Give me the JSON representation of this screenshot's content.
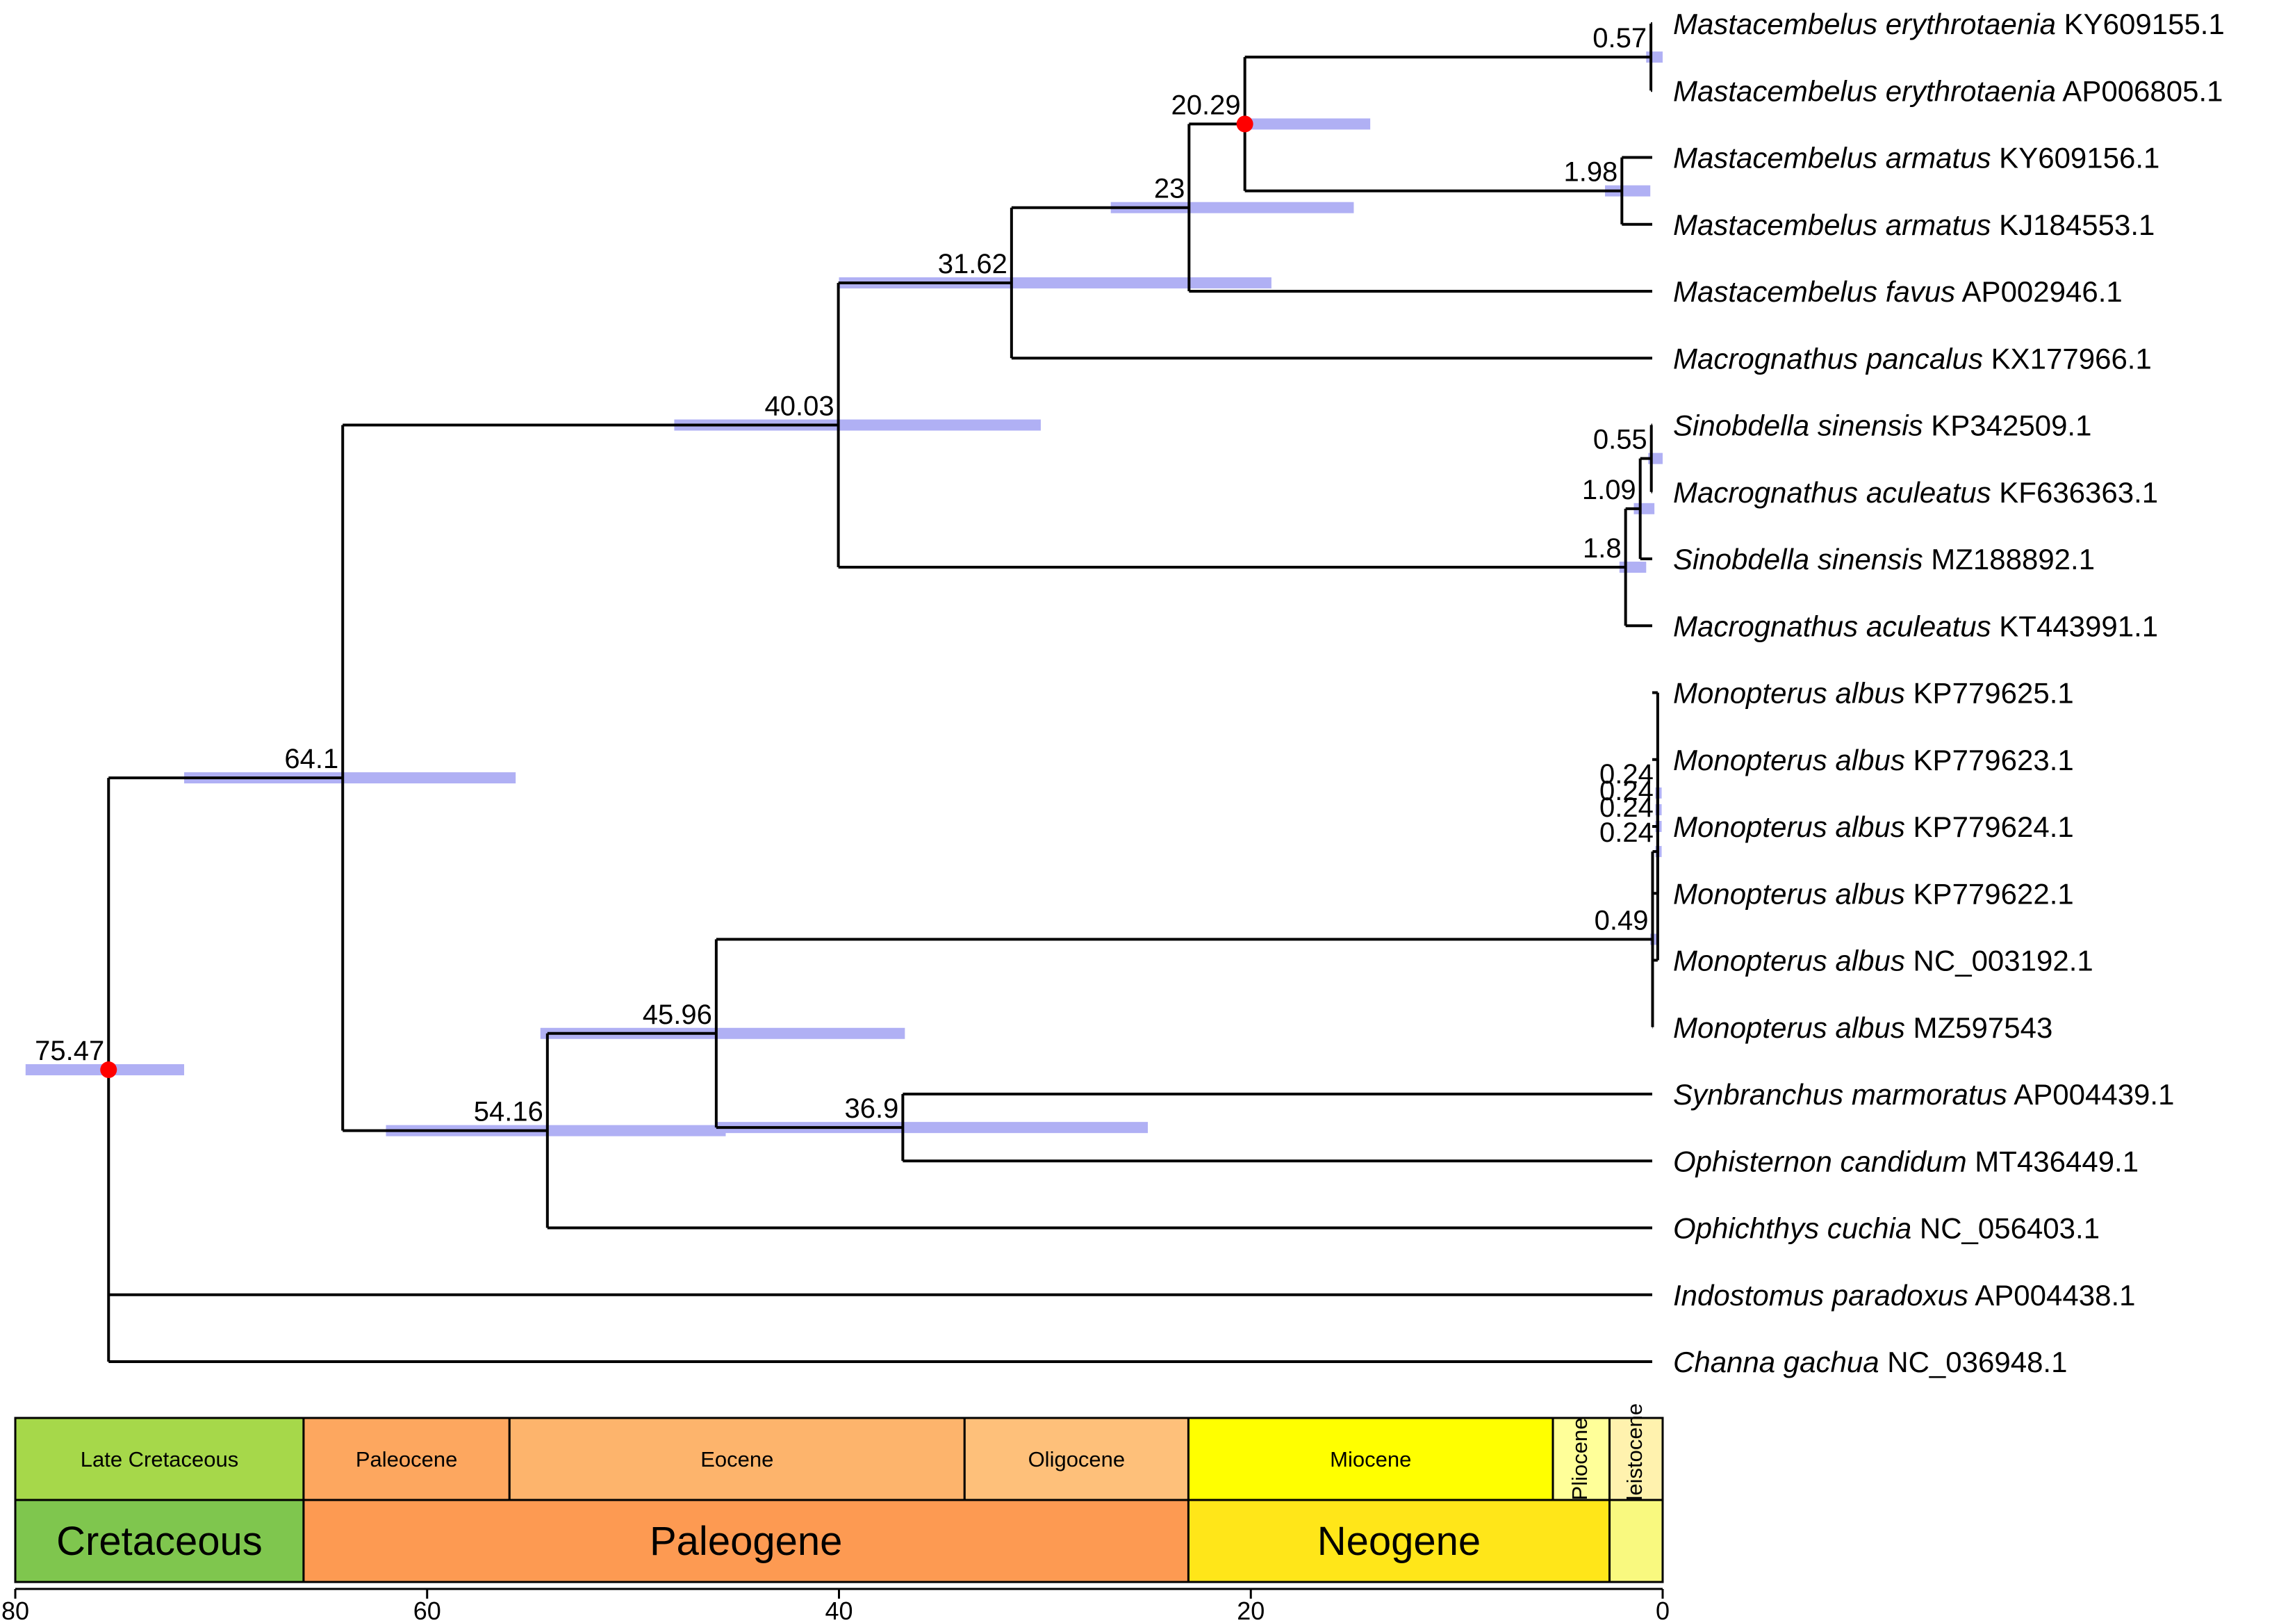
{
  "tips": [
    {
      "id": "t1",
      "species": "Mastacembelus erythrotaenia",
      "acc": "KY609155.1"
    },
    {
      "id": "t2",
      "species": "Mastacembelus erythrotaenia",
      "acc": "AP006805.1"
    },
    {
      "id": "t3",
      "species": "Mastacembelus armatus",
      "acc": "KY609156.1"
    },
    {
      "id": "t4",
      "species": "Mastacembelus armatus",
      "acc": "KJ184553.1"
    },
    {
      "id": "t5",
      "species": "Mastacembelus favus",
      "acc": "AP002946.1"
    },
    {
      "id": "t6",
      "species": "Macrognathus pancalus",
      "acc": "KX177966.1"
    },
    {
      "id": "t7",
      "species": "Sinobdella sinensis",
      "acc": "KP342509.1"
    },
    {
      "id": "t8",
      "species": "Macrognathus aculeatus",
      "acc": "KF636363.1"
    },
    {
      "id": "t9",
      "species": "Sinobdella sinensis",
      "acc": "MZ188892.1"
    },
    {
      "id": "t10",
      "species": "Macrognathus aculeatus",
      "acc": "KT443991.1"
    },
    {
      "id": "t11",
      "species": "Monopterus albus",
      "acc": "KP779625.1"
    },
    {
      "id": "t12",
      "species": "Monopterus albus",
      "acc": "KP779623.1"
    },
    {
      "id": "t13",
      "species": "Monopterus albus",
      "acc": "KP779624.1"
    },
    {
      "id": "t14",
      "species": "Monopterus albus",
      "acc": "KP779622.1"
    },
    {
      "id": "t15",
      "species": "Monopterus albus",
      "acc": "NC_003192.1"
    },
    {
      "id": "t16",
      "species": "Monopterus albus",
      "acc": "MZ597543"
    },
    {
      "id": "t17",
      "species": "Synbranchus marmoratus",
      "acc": "AP004439.1"
    },
    {
      "id": "t18",
      "species": "Ophisternon candidum",
      "acc": "MT436449.1"
    },
    {
      "id": "t19",
      "species": "Ophichthys cuchia",
      "acc": "NC_056403.1"
    },
    {
      "id": "t20",
      "species": "Indostomus paradoxus",
      "acc": "AP004438.1"
    },
    {
      "id": "t21",
      "species": "Channa gachua",
      "acc": "NC_036948.1"
    }
  ],
  "nodes": [
    {
      "id": "root",
      "label": "75.47",
      "age": 75.47,
      "hpd": [
        79.5,
        71.8
      ],
      "calibrated": true,
      "children": [
        "n64",
        "t20",
        "t21"
      ]
    },
    {
      "id": "n64",
      "label": "64.1",
      "age": 64.1,
      "hpd": [
        71.8,
        55.7
      ],
      "children": [
        "n40",
        "n54"
      ]
    },
    {
      "id": "n40",
      "label": "40.03",
      "age": 40.03,
      "hpd": [
        48.0,
        30.2
      ],
      "children": [
        "n31",
        "nSin"
      ]
    },
    {
      "id": "n31",
      "label": "31.62",
      "age": 31.62,
      "hpd": [
        40.0,
        19.0
      ],
      "children": [
        "n23",
        "t6"
      ]
    },
    {
      "id": "n23",
      "label": "23",
      "age": 23.0,
      "hpd": [
        26.8,
        15.0
      ],
      "children": [
        "n20",
        "t5"
      ]
    },
    {
      "id": "n20",
      "label": "20.29",
      "age": 20.29,
      "hpd": [
        20.6,
        14.2
      ],
      "calibrated": true,
      "children": [
        "n057",
        "n198"
      ]
    },
    {
      "id": "n057",
      "label": "0.57",
      "age": 0.57,
      "hpd": [
        0.8,
        0.0
      ],
      "children": [
        "t1",
        "t2"
      ]
    },
    {
      "id": "n198",
      "label": "1.98",
      "age": 1.98,
      "hpd": [
        2.8,
        0.6
      ],
      "children": [
        "t3",
        "t4"
      ]
    },
    {
      "id": "nSin",
      "label": "1.8",
      "age": 1.8,
      "hpd": [
        2.1,
        0.8
      ],
      "children": [
        "n109",
        "t10"
      ]
    },
    {
      "id": "n109",
      "label": "1.09",
      "age": 1.09,
      "hpd": [
        1.4,
        0.4
      ],
      "children": [
        "n055",
        "t9"
      ]
    },
    {
      "id": "n055",
      "label": "0.55",
      "age": 0.55,
      "hpd": [
        0.7,
        0.0
      ],
      "children": [
        "t7",
        "t8"
      ]
    },
    {
      "id": "n54",
      "label": "54.16",
      "age": 54.16,
      "hpd": [
        62.0,
        45.5
      ],
      "children": [
        "n45",
        "t19"
      ]
    },
    {
      "id": "n45",
      "label": "45.96",
      "age": 45.96,
      "hpd": [
        54.5,
        36.8
      ],
      "children": [
        "nMon",
        "n369"
      ]
    },
    {
      "id": "n369",
      "label": "36.9",
      "age": 36.9,
      "hpd": [
        46.0,
        25.0
      ],
      "children": [
        "t17",
        "t18"
      ]
    },
    {
      "id": "nMon",
      "label": "0.49",
      "age": 0.49,
      "hpd": [
        0.6,
        0.2
      ],
      "children": [
        "nM3",
        "t16"
      ]
    },
    {
      "id": "nM3",
      "label": "0.24",
      "age": 0.24,
      "hpd": [
        0.35,
        0.05
      ],
      "children": [
        "nM2",
        "t14"
      ]
    },
    {
      "id": "nM2",
      "label": "0.24",
      "age": 0.24,
      "hpd": [
        0.35,
        0.05
      ],
      "children": [
        "nM1",
        "t13"
      ]
    },
    {
      "id": "nM1",
      "label": "0.24",
      "age": 0.24,
      "hpd": [
        0.35,
        0.05
      ],
      "children": [
        "nM0",
        "t12"
      ]
    },
    {
      "id": "nM0",
      "label": "0.24",
      "age": 0.24,
      "hpd": [
        0.35,
        0.05
      ],
      "children": [
        "t11",
        "t15"
      ]
    }
  ],
  "timescale": {
    "epochs": [
      {
        "name": "Late Cretaceous",
        "start": 80,
        "end": 66,
        "color": "#a6d84a",
        "vertical": false
      },
      {
        "name": "Paleocene",
        "start": 66,
        "end": 56,
        "color": "#fda75f",
        "vertical": false
      },
      {
        "name": "Eocene",
        "start": 56,
        "end": 33.9,
        "color": "#fdb46c",
        "vertical": false
      },
      {
        "name": "Oligocene",
        "start": 33.9,
        "end": 23.03,
        "color": "#fec07a",
        "vertical": false
      },
      {
        "name": "Miocene",
        "start": 23.03,
        "end": 5.33,
        "color": "#ffff00",
        "vertical": false
      },
      {
        "name": "Pliocene",
        "start": 5.33,
        "end": 2.58,
        "color": "#ffff99",
        "vertical": true
      },
      {
        "name": "Pleistocene",
        "start": 2.58,
        "end": 0,
        "color": "#fff2ae",
        "vertical": true
      }
    ],
    "periods": [
      {
        "name": "Cretaceous",
        "start": 80,
        "end": 66,
        "color": "#7fc64e"
      },
      {
        "name": "Paleogene",
        "start": 66,
        "end": 23.03,
        "color": "#fd9a52"
      },
      {
        "name": "Neogene",
        "start": 23.03,
        "end": 2.58,
        "color": "#ffe619"
      },
      {
        "name": "",
        "start": 2.58,
        "end": 0,
        "color": "#f9f97f"
      }
    ]
  },
  "axis": {
    "ticks": [
      80,
      60,
      40,
      20,
      0
    ],
    "range": [
      80,
      0
    ]
  },
  "colors": {
    "hpd_bar": "#b0b0f4",
    "calibration_point": "#ff0000"
  }
}
